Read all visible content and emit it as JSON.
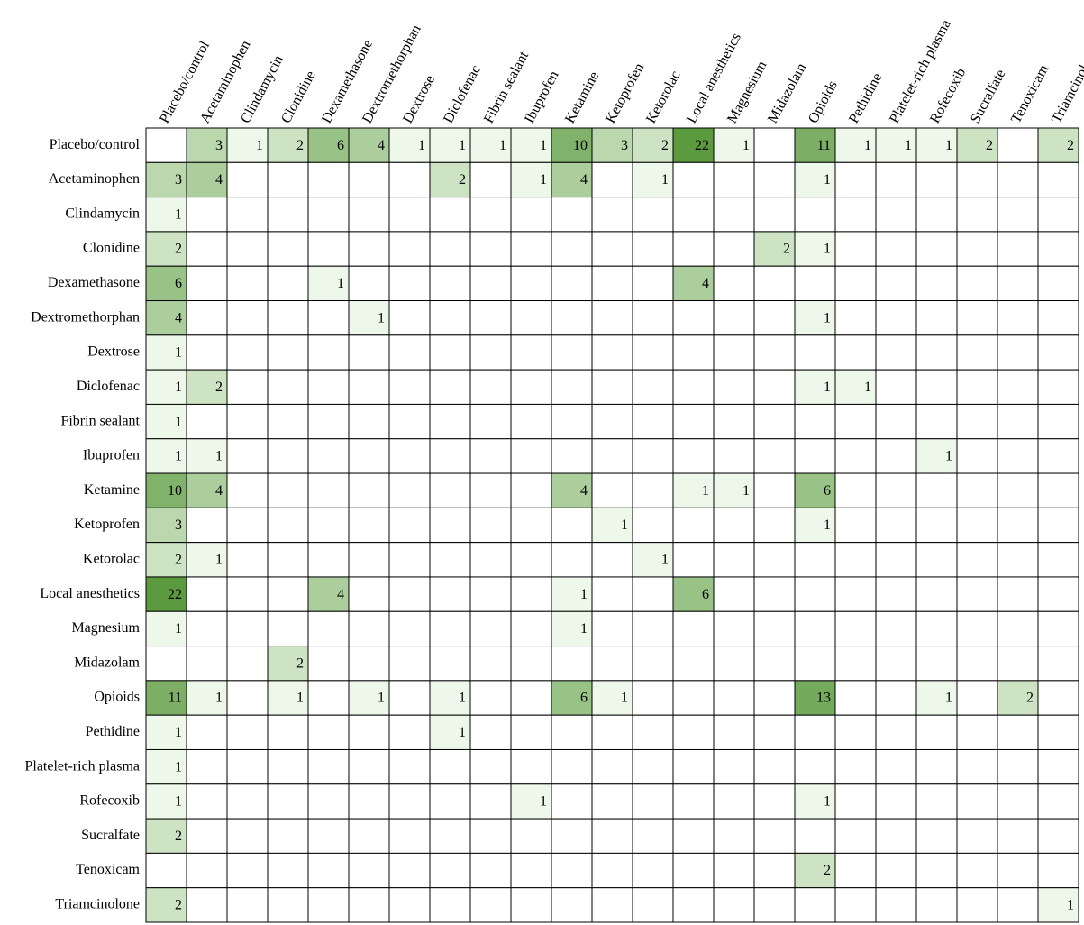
{
  "chart_data": {
    "type": "heatmap",
    "x_categories": [
      "Placebo/control",
      "Acetaminophen",
      "Clindamycin",
      "Clonidine",
      "Dexamethasone",
      "Dextromethorphan",
      "Dextrose",
      "Diclofenac",
      "Fibrin sealant",
      "Ibuprofen",
      "Ketamine",
      "Ketoprofen",
      "Ketorolac",
      "Local anesthetics",
      "Magnesium",
      "Midazolam",
      "Opioids",
      "Pethidine",
      "Platelet-rich plasma",
      "Rofecoxib",
      "Sucralfate",
      "Tenoxicam",
      "Triamcinolone"
    ],
    "y_categories": [
      "Placebo/control",
      "Acetaminophen",
      "Clindamycin",
      "Clonidine",
      "Dexamethasone",
      "Dextromethorphan",
      "Dextrose",
      "Diclofenac",
      "Fibrin sealant",
      "Ibuprofen",
      "Ketamine",
      "Ketoprofen",
      "Ketorolac",
      "Local anesthetics",
      "Magnesium",
      "Midazolam",
      "Opioids",
      "Pethidine",
      "Platelet-rich plasma",
      "Rofecoxib",
      "Sucralfate",
      "Tenoxicam",
      "Triamcinolone"
    ],
    "values": [
      [
        null,
        3,
        1,
        2,
        6,
        4,
        1,
        1,
        1,
        1,
        10,
        3,
        2,
        22,
        1,
        null,
        11,
        1,
        1,
        1,
        2,
        null,
        2
      ],
      [
        3,
        4,
        null,
        null,
        null,
        null,
        null,
        2,
        null,
        1,
        4,
        null,
        1,
        null,
        null,
        null,
        1,
        null,
        null,
        null,
        null,
        null,
        null
      ],
      [
        1,
        null,
        null,
        null,
        null,
        null,
        null,
        null,
        null,
        null,
        null,
        null,
        null,
        null,
        null,
        null,
        null,
        null,
        null,
        null,
        null,
        null,
        null
      ],
      [
        2,
        null,
        null,
        null,
        null,
        null,
        null,
        null,
        null,
        null,
        null,
        null,
        null,
        null,
        null,
        2,
        1,
        null,
        null,
        null,
        null,
        null,
        null
      ],
      [
        6,
        null,
        null,
        null,
        1,
        null,
        null,
        null,
        null,
        null,
        null,
        null,
        null,
        4,
        null,
        null,
        null,
        null,
        null,
        null,
        null,
        null,
        null
      ],
      [
        4,
        null,
        null,
        null,
        null,
        1,
        null,
        null,
        null,
        null,
        null,
        null,
        null,
        null,
        null,
        null,
        1,
        null,
        null,
        null,
        null,
        null,
        null
      ],
      [
        1,
        null,
        null,
        null,
        null,
        null,
        null,
        null,
        null,
        null,
        null,
        null,
        null,
        null,
        null,
        null,
        null,
        null,
        null,
        null,
        null,
        null,
        null
      ],
      [
        1,
        2,
        null,
        null,
        null,
        null,
        null,
        null,
        null,
        null,
        null,
        null,
        null,
        null,
        null,
        null,
        1,
        1,
        null,
        null,
        null,
        null,
        null
      ],
      [
        1,
        null,
        null,
        null,
        null,
        null,
        null,
        null,
        null,
        null,
        null,
        null,
        null,
        null,
        null,
        null,
        null,
        null,
        null,
        null,
        null,
        null,
        null
      ],
      [
        1,
        1,
        null,
        null,
        null,
        null,
        null,
        null,
        null,
        null,
        null,
        null,
        null,
        null,
        null,
        null,
        null,
        null,
        null,
        1,
        null,
        null,
        null
      ],
      [
        10,
        4,
        null,
        null,
        null,
        null,
        null,
        null,
        null,
        null,
        4,
        null,
        null,
        1,
        1,
        null,
        6,
        null,
        null,
        null,
        null,
        null,
        null
      ],
      [
        3,
        null,
        null,
        null,
        null,
        null,
        null,
        null,
        null,
        null,
        null,
        1,
        null,
        null,
        null,
        null,
        1,
        null,
        null,
        null,
        null,
        null,
        null
      ],
      [
        2,
        1,
        null,
        null,
        null,
        null,
        null,
        null,
        null,
        null,
        null,
        null,
        1,
        null,
        null,
        null,
        null,
        null,
        null,
        null,
        null,
        null,
        null
      ],
      [
        22,
        null,
        null,
        null,
        4,
        null,
        null,
        null,
        null,
        null,
        1,
        null,
        null,
        6,
        null,
        null,
        null,
        null,
        null,
        null,
        null,
        null,
        null
      ],
      [
        1,
        null,
        null,
        null,
        null,
        null,
        null,
        null,
        null,
        null,
        1,
        null,
        null,
        null,
        null,
        null,
        null,
        null,
        null,
        null,
        null,
        null,
        null
      ],
      [
        null,
        null,
        null,
        2,
        null,
        null,
        null,
        null,
        null,
        null,
        null,
        null,
        null,
        null,
        null,
        null,
        null,
        null,
        null,
        null,
        null,
        null,
        null
      ],
      [
        11,
        1,
        null,
        1,
        null,
        1,
        null,
        1,
        null,
        null,
        6,
        1,
        null,
        null,
        null,
        null,
        13,
        null,
        null,
        1,
        null,
        2,
        null
      ],
      [
        1,
        null,
        null,
        null,
        null,
        null,
        null,
        1,
        null,
        null,
        null,
        null,
        null,
        null,
        null,
        null,
        null,
        null,
        null,
        null,
        null,
        null,
        null
      ],
      [
        1,
        null,
        null,
        null,
        null,
        null,
        null,
        null,
        null,
        null,
        null,
        null,
        null,
        null,
        null,
        null,
        null,
        null,
        null,
        null,
        null,
        null,
        null
      ],
      [
        1,
        null,
        null,
        null,
        null,
        null,
        null,
        null,
        null,
        1,
        null,
        null,
        null,
        null,
        null,
        null,
        1,
        null,
        null,
        null,
        null,
        null,
        null
      ],
      [
        2,
        null,
        null,
        null,
        null,
        null,
        null,
        null,
        null,
        null,
        null,
        null,
        null,
        null,
        null,
        null,
        null,
        null,
        null,
        null,
        null,
        null,
        null
      ],
      [
        null,
        null,
        null,
        null,
        null,
        null,
        null,
        null,
        null,
        null,
        null,
        null,
        null,
        null,
        null,
        null,
        2,
        null,
        null,
        null,
        null,
        null,
        null
      ],
      [
        2,
        null,
        null,
        null,
        null,
        null,
        null,
        null,
        null,
        null,
        null,
        null,
        null,
        null,
        null,
        null,
        null,
        null,
        null,
        null,
        null,
        null,
        1
      ]
    ],
    "colors": [
      "#eef8ea",
      "#5b9a3f"
    ]
  }
}
